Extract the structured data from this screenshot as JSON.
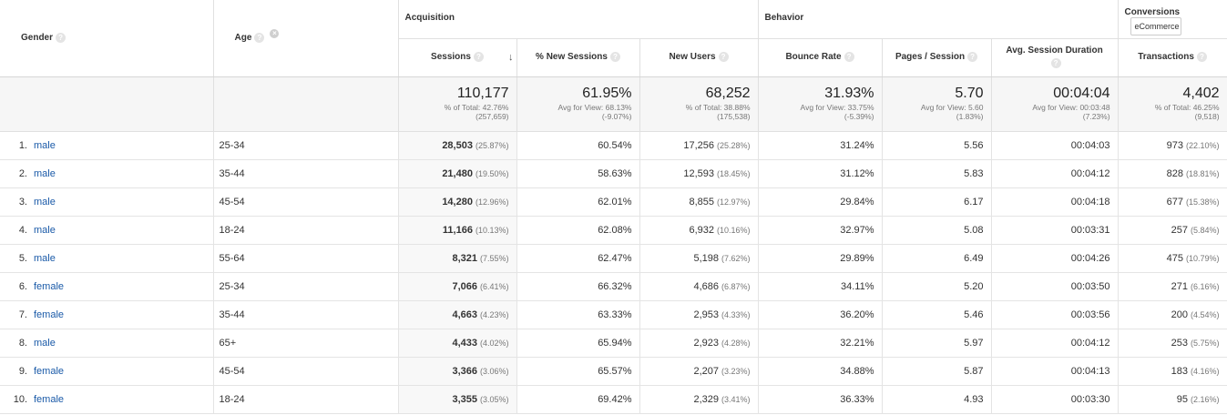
{
  "headers": {
    "gender": "Gender",
    "age": "Age",
    "acquisition": "Acquisition",
    "behavior": "Behavior",
    "conversions": "Conversions",
    "conversions_select": "eCommerce",
    "sessions": "Sessions",
    "pct_new_sessions": "% New Sessions",
    "new_users": "New Users",
    "bounce_rate": "Bounce Rate",
    "pages_session": "Pages / Session",
    "avg_duration": "Avg. Session Duration",
    "transactions": "Transactions"
  },
  "totals": {
    "sessions": {
      "value": "110,177",
      "sub1": "% of Total: 42.76%",
      "sub2": "(257,659)"
    },
    "pct_new_sessions": {
      "value": "61.95%",
      "sub1": "Avg for View: 68.13%",
      "sub2": "(-9.07%)"
    },
    "new_users": {
      "value": "68,252",
      "sub1": "% of Total: 38.88%",
      "sub2": "(175,538)"
    },
    "bounce_rate": {
      "value": "31.93%",
      "sub1": "Avg for View: 33.75%",
      "sub2": "(-5.39%)"
    },
    "pages_session": {
      "value": "5.70",
      "sub1": "Avg for View: 5.60",
      "sub2": "(1.83%)"
    },
    "avg_duration": {
      "value": "00:04:04",
      "sub1": "Avg for View: 00:03:48",
      "sub2": "(7.23%)"
    },
    "transactions": {
      "value": "4,402",
      "sub1": "% of Total: 46.25%",
      "sub2": "(9,518)"
    }
  },
  "rows": [
    {
      "idx": "1.",
      "gender": "male",
      "age": "25-34",
      "sessions": "28,503",
      "sessions_pct": "(25.87%)",
      "pct_new": "60.54%",
      "new_users": "17,256",
      "new_users_pct": "(25.28%)",
      "bounce": "31.24%",
      "pages": "5.56",
      "duration": "00:04:03",
      "trans": "973",
      "trans_pct": "(22.10%)"
    },
    {
      "idx": "2.",
      "gender": "male",
      "age": "35-44",
      "sessions": "21,480",
      "sessions_pct": "(19.50%)",
      "pct_new": "58.63%",
      "new_users": "12,593",
      "new_users_pct": "(18.45%)",
      "bounce": "31.12%",
      "pages": "5.83",
      "duration": "00:04:12",
      "trans": "828",
      "trans_pct": "(18.81%)"
    },
    {
      "idx": "3.",
      "gender": "male",
      "age": "45-54",
      "sessions": "14,280",
      "sessions_pct": "(12.96%)",
      "pct_new": "62.01%",
      "new_users": "8,855",
      "new_users_pct": "(12.97%)",
      "bounce": "29.84%",
      "pages": "6.17",
      "duration": "00:04:18",
      "trans": "677",
      "trans_pct": "(15.38%)"
    },
    {
      "idx": "4.",
      "gender": "male",
      "age": "18-24",
      "sessions": "11,166",
      "sessions_pct": "(10.13%)",
      "pct_new": "62.08%",
      "new_users": "6,932",
      "new_users_pct": "(10.16%)",
      "bounce": "32.97%",
      "pages": "5.08",
      "duration": "00:03:31",
      "trans": "257",
      "trans_pct": "(5.84%)"
    },
    {
      "idx": "5.",
      "gender": "male",
      "age": "55-64",
      "sessions": "8,321",
      "sessions_pct": "(7.55%)",
      "pct_new": "62.47%",
      "new_users": "5,198",
      "new_users_pct": "(7.62%)",
      "bounce": "29.89%",
      "pages": "6.49",
      "duration": "00:04:26",
      "trans": "475",
      "trans_pct": "(10.79%)"
    },
    {
      "idx": "6.",
      "gender": "female",
      "age": "25-34",
      "sessions": "7,066",
      "sessions_pct": "(6.41%)",
      "pct_new": "66.32%",
      "new_users": "4,686",
      "new_users_pct": "(6.87%)",
      "bounce": "34.11%",
      "pages": "5.20",
      "duration": "00:03:50",
      "trans": "271",
      "trans_pct": "(6.16%)"
    },
    {
      "idx": "7.",
      "gender": "female",
      "age": "35-44",
      "sessions": "4,663",
      "sessions_pct": "(4.23%)",
      "pct_new": "63.33%",
      "new_users": "2,953",
      "new_users_pct": "(4.33%)",
      "bounce": "36.20%",
      "pages": "5.46",
      "duration": "00:03:56",
      "trans": "200",
      "trans_pct": "(4.54%)"
    },
    {
      "idx": "8.",
      "gender": "male",
      "age": "65+",
      "sessions": "4,433",
      "sessions_pct": "(4.02%)",
      "pct_new": "65.94%",
      "new_users": "2,923",
      "new_users_pct": "(4.28%)",
      "bounce": "32.21%",
      "pages": "5.97",
      "duration": "00:04:12",
      "trans": "253",
      "trans_pct": "(5.75%)"
    },
    {
      "idx": "9.",
      "gender": "female",
      "age": "45-54",
      "sessions": "3,366",
      "sessions_pct": "(3.06%)",
      "pct_new": "65.57%",
      "new_users": "2,207",
      "new_users_pct": "(3.23%)",
      "bounce": "34.88%",
      "pages": "5.87",
      "duration": "00:04:13",
      "trans": "183",
      "trans_pct": "(4.16%)"
    },
    {
      "idx": "10.",
      "gender": "female",
      "age": "18-24",
      "sessions": "3,355",
      "sessions_pct": "(3.05%)",
      "pct_new": "69.42%",
      "new_users": "2,329",
      "new_users_pct": "(3.41%)",
      "bounce": "36.33%",
      "pages": "4.93",
      "duration": "00:03:30",
      "trans": "95",
      "trans_pct": "(2.16%)"
    }
  ],
  "icons": {
    "help": "?",
    "remove": "×",
    "sort": "↓"
  }
}
